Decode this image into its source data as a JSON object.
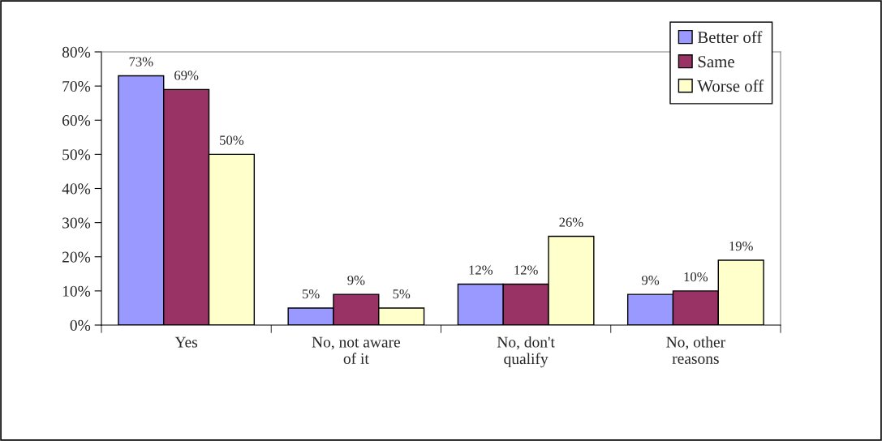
{
  "chart_data": {
    "type": "bar",
    "categories": [
      "Yes",
      "No, not aware\nof it",
      "No, don't\nqualify",
      "No, other\nreasons"
    ],
    "series": [
      {
        "name": "Better off",
        "color": "#9999ff",
        "values": [
          73,
          5,
          12,
          9
        ],
        "value_labels": [
          "73%",
          "5%",
          "12%",
          "9%"
        ]
      },
      {
        "name": "Same",
        "color": "#993366",
        "values": [
          69,
          9,
          12,
          10
        ],
        "value_labels": [
          "69%",
          "9%",
          "12%",
          "10%"
        ]
      },
      {
        "name": "Worse off",
        "color": "#ffffcc",
        "values": [
          50,
          5,
          26,
          19
        ],
        "value_labels": [
          "50%",
          "5%",
          "26%",
          "19%"
        ]
      }
    ],
    "ylim": [
      0,
      80
    ],
    "yticks": [
      {
        "value": 0,
        "label": "0%"
      },
      {
        "value": 10,
        "label": "10%"
      },
      {
        "value": 20,
        "label": "20%"
      },
      {
        "value": 30,
        "label": "30%"
      },
      {
        "value": 40,
        "label": "40%"
      },
      {
        "value": 50,
        "label": "50%"
      },
      {
        "value": 60,
        "label": "60%"
      },
      {
        "value": 70,
        "label": "70%"
      },
      {
        "value": 80,
        "label": "80%"
      }
    ],
    "grid": false,
    "legend": "top right"
  }
}
